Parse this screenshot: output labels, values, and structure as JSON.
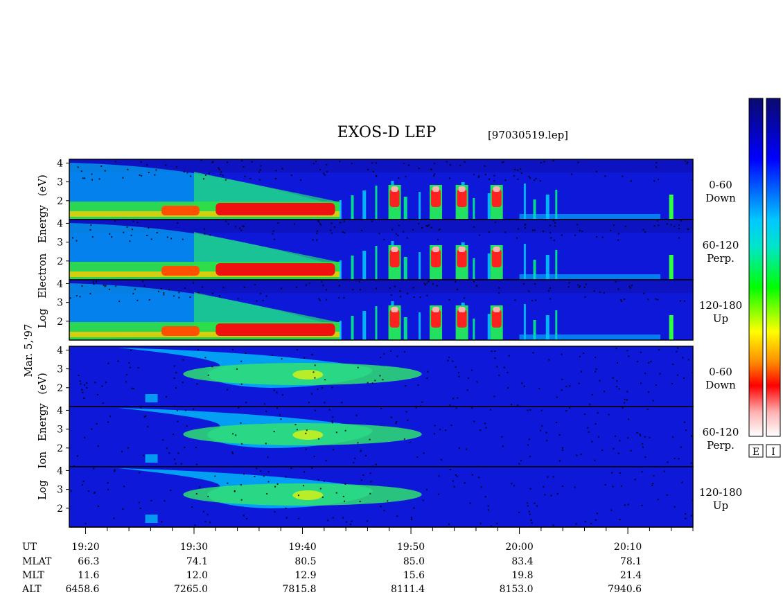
{
  "chart_data": {
    "type": "heatmap",
    "title": "EXOS-D LEP",
    "subtitle": "[97030519.lep]",
    "date_label": "Mar. 5,'97",
    "electron": {
      "ylabel_words": [
        "Log",
        "Electron",
        "Energy",
        "(eV)"
      ],
      "panels": [
        {
          "pitch": "0-60",
          "direction": "Down"
        },
        {
          "pitch": "60-120",
          "direction": "Perp."
        },
        {
          "pitch": "120-180",
          "direction": "Up"
        }
      ]
    },
    "ion": {
      "ylabel_words": [
        "Log",
        "Ion",
        "Energy",
        "(eV)"
      ],
      "panels": [
        {
          "pitch": "0-60",
          "direction": "Down"
        },
        {
          "pitch": "60-120",
          "direction": "Perp."
        },
        {
          "pitch": "120-180",
          "direction": "Up"
        }
      ]
    },
    "y_range": [
      1,
      4.2
    ],
    "y_ticks": [
      "4",
      "3",
      "2"
    ],
    "x_range_minutes": [
      1158.5,
      1216
    ],
    "ephemeris": {
      "labels": [
        "UT",
        "MLAT",
        "MLT",
        "ALT"
      ],
      "ut": [
        "19:20",
        "19:30",
        "19:40",
        "19:50",
        "20:00",
        "20:10"
      ],
      "mlat": [
        "66.3",
        "74.1",
        "80.5",
        "85.0",
        "83.4",
        "78.1"
      ],
      "mlt": [
        "11.6",
        "12.0",
        "12.9",
        "15.6",
        "19.8",
        "21.4"
      ],
      "alt": [
        "6458.6",
        "7265.0",
        "7815.8",
        "8111.4",
        "8153.0",
        "7940.6"
      ]
    },
    "colorbar": {
      "labels": [
        "E",
        "I"
      ],
      "colors": [
        "#0a0a6e",
        "#0000ff",
        "#00c8ff",
        "#00e6c8",
        "#00ff00",
        "#ffff00",
        "#ff8c00",
        "#ff0000",
        "#ffb4b4",
        "#ffffff"
      ]
    }
  }
}
